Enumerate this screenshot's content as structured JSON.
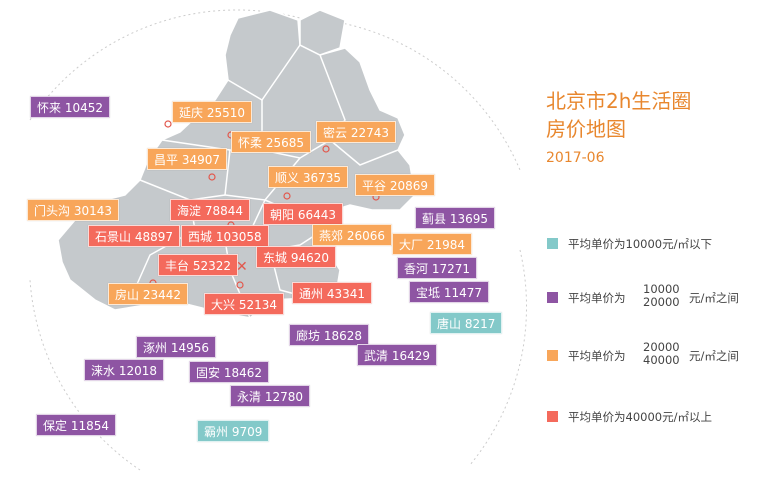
{
  "title": {
    "line1": "北京市2h生活圈",
    "line2": "房价地图",
    "date": "2017-06"
  },
  "legend": {
    "low": {
      "text": "平均单价为10000元/㎡以下",
      "color": "#83c9c9"
    },
    "mid": {
      "prefix": "平均单价为",
      "top": "10000",
      "bottom": "20000",
      "suffix": "元/㎡之间",
      "color": "#8e55a3"
    },
    "high": {
      "prefix": "平均单价为",
      "top": "20000",
      "bottom": "40000",
      "suffix": "元/㎡之间",
      "color": "#f8a65a"
    },
    "top": {
      "text": "平均单价为40000元/㎡以上",
      "color": "#f46a5c"
    }
  },
  "colors": {
    "map_fill": "#c5c9cc",
    "map_stroke": "#ffffff",
    "dot": "#e2584d",
    "circle": "#cccccc"
  },
  "areas": [
    {
      "id": "huailai",
      "label": "怀来 10452",
      "tier": "mid"
    },
    {
      "id": "yanqing",
      "label": "延庆 25510",
      "tier": "high"
    },
    {
      "id": "huairou",
      "label": "怀柔 25685",
      "tier": "high"
    },
    {
      "id": "miyun",
      "label": "密云 22743",
      "tier": "high"
    },
    {
      "id": "changping",
      "label": "昌平 34907",
      "tier": "high"
    },
    {
      "id": "shunyi",
      "label": "顺义 36735",
      "tier": "high"
    },
    {
      "id": "pinggu",
      "label": "平谷 20869",
      "tier": "high"
    },
    {
      "id": "mentougou",
      "label": "门头沟 30143",
      "tier": "high"
    },
    {
      "id": "haidian",
      "label": "海淀 78844",
      "tier": "top"
    },
    {
      "id": "chaoyang",
      "label": "朝阳 66443",
      "tier": "top"
    },
    {
      "id": "jixian",
      "label": "蓟县 13695",
      "tier": "mid"
    },
    {
      "id": "shijingshan",
      "label": "石景山 48897",
      "tier": "top"
    },
    {
      "id": "xicheng",
      "label": "西城 103058",
      "tier": "top"
    },
    {
      "id": "yanjiao",
      "label": "燕郊 26066",
      "tier": "high"
    },
    {
      "id": "dachang",
      "label": "大厂 21984",
      "tier": "high"
    },
    {
      "id": "fengtai",
      "label": "丰台 52322",
      "tier": "top"
    },
    {
      "id": "dongcheng",
      "label": "东城 94620",
      "tier": "top"
    },
    {
      "id": "xianghe",
      "label": "香河 17271",
      "tier": "mid"
    },
    {
      "id": "fangshan",
      "label": "房山 23442",
      "tier": "high"
    },
    {
      "id": "daxing",
      "label": "大兴 52134",
      "tier": "top"
    },
    {
      "id": "tongzhou",
      "label": "通州 43341",
      "tier": "top"
    },
    {
      "id": "baodi",
      "label": "宝坻 11477",
      "tier": "mid"
    },
    {
      "id": "tangshan",
      "label": "唐山 8217",
      "tier": "low"
    },
    {
      "id": "langfang",
      "label": "廊坊 18628",
      "tier": "mid"
    },
    {
      "id": "zhuozhou",
      "label": "涿州 14956",
      "tier": "mid"
    },
    {
      "id": "wuqing",
      "label": "武清 16429",
      "tier": "mid"
    },
    {
      "id": "laishui",
      "label": "涞水 12018",
      "tier": "mid"
    },
    {
      "id": "guan",
      "label": "固安 18462",
      "tier": "mid"
    },
    {
      "id": "yongqing",
      "label": "永清 12780",
      "tier": "mid"
    },
    {
      "id": "baoding",
      "label": "保定 11854",
      "tier": "mid"
    },
    {
      "id": "bazhou",
      "label": "霸州 9709",
      "tier": "low"
    }
  ]
}
